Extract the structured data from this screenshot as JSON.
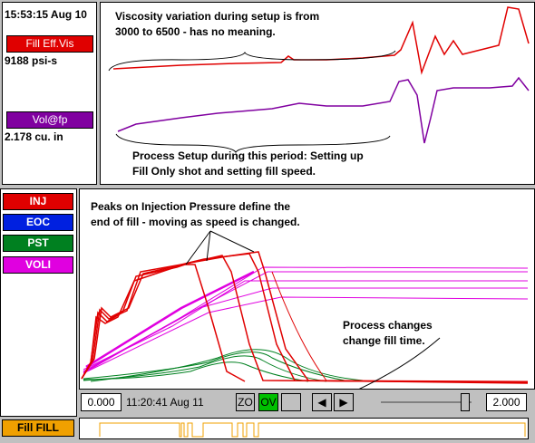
{
  "header": {
    "timestamp": "15:53:15 Aug 10"
  },
  "top_panel": {
    "channels": [
      {
        "label": "Fill Eff.Vis",
        "value": "9188 psi-s"
      },
      {
        "label": "Vol@fp",
        "value": "2.178 cu. in"
      }
    ],
    "notes": [
      {
        "lines": [
          "Viscosity variation during setup is from",
          "3000 to 6500 - has no meaning."
        ]
      },
      {
        "lines": [
          "Process Setup during this period: Setting up",
          "Fill Only shot and setting fill speed."
        ]
      }
    ]
  },
  "legend": {
    "items": [
      "INJ",
      "EOC",
      "PST",
      "VOLI"
    ]
  },
  "chart": {
    "notes": [
      {
        "lines": [
          "Peaks on Injection Pressure define the",
          "end of fill - moving as speed is changed."
        ]
      },
      {
        "lines": [
          "Process changes",
          "change fill time."
        ]
      }
    ]
  },
  "toolbar": {
    "start": "0.000",
    "time": "11:20:41 Aug 11",
    "zoom": "ZO",
    "overlay": "OV",
    "end": "2.000"
  },
  "bottom": {
    "label": "Fill FILL"
  }
}
